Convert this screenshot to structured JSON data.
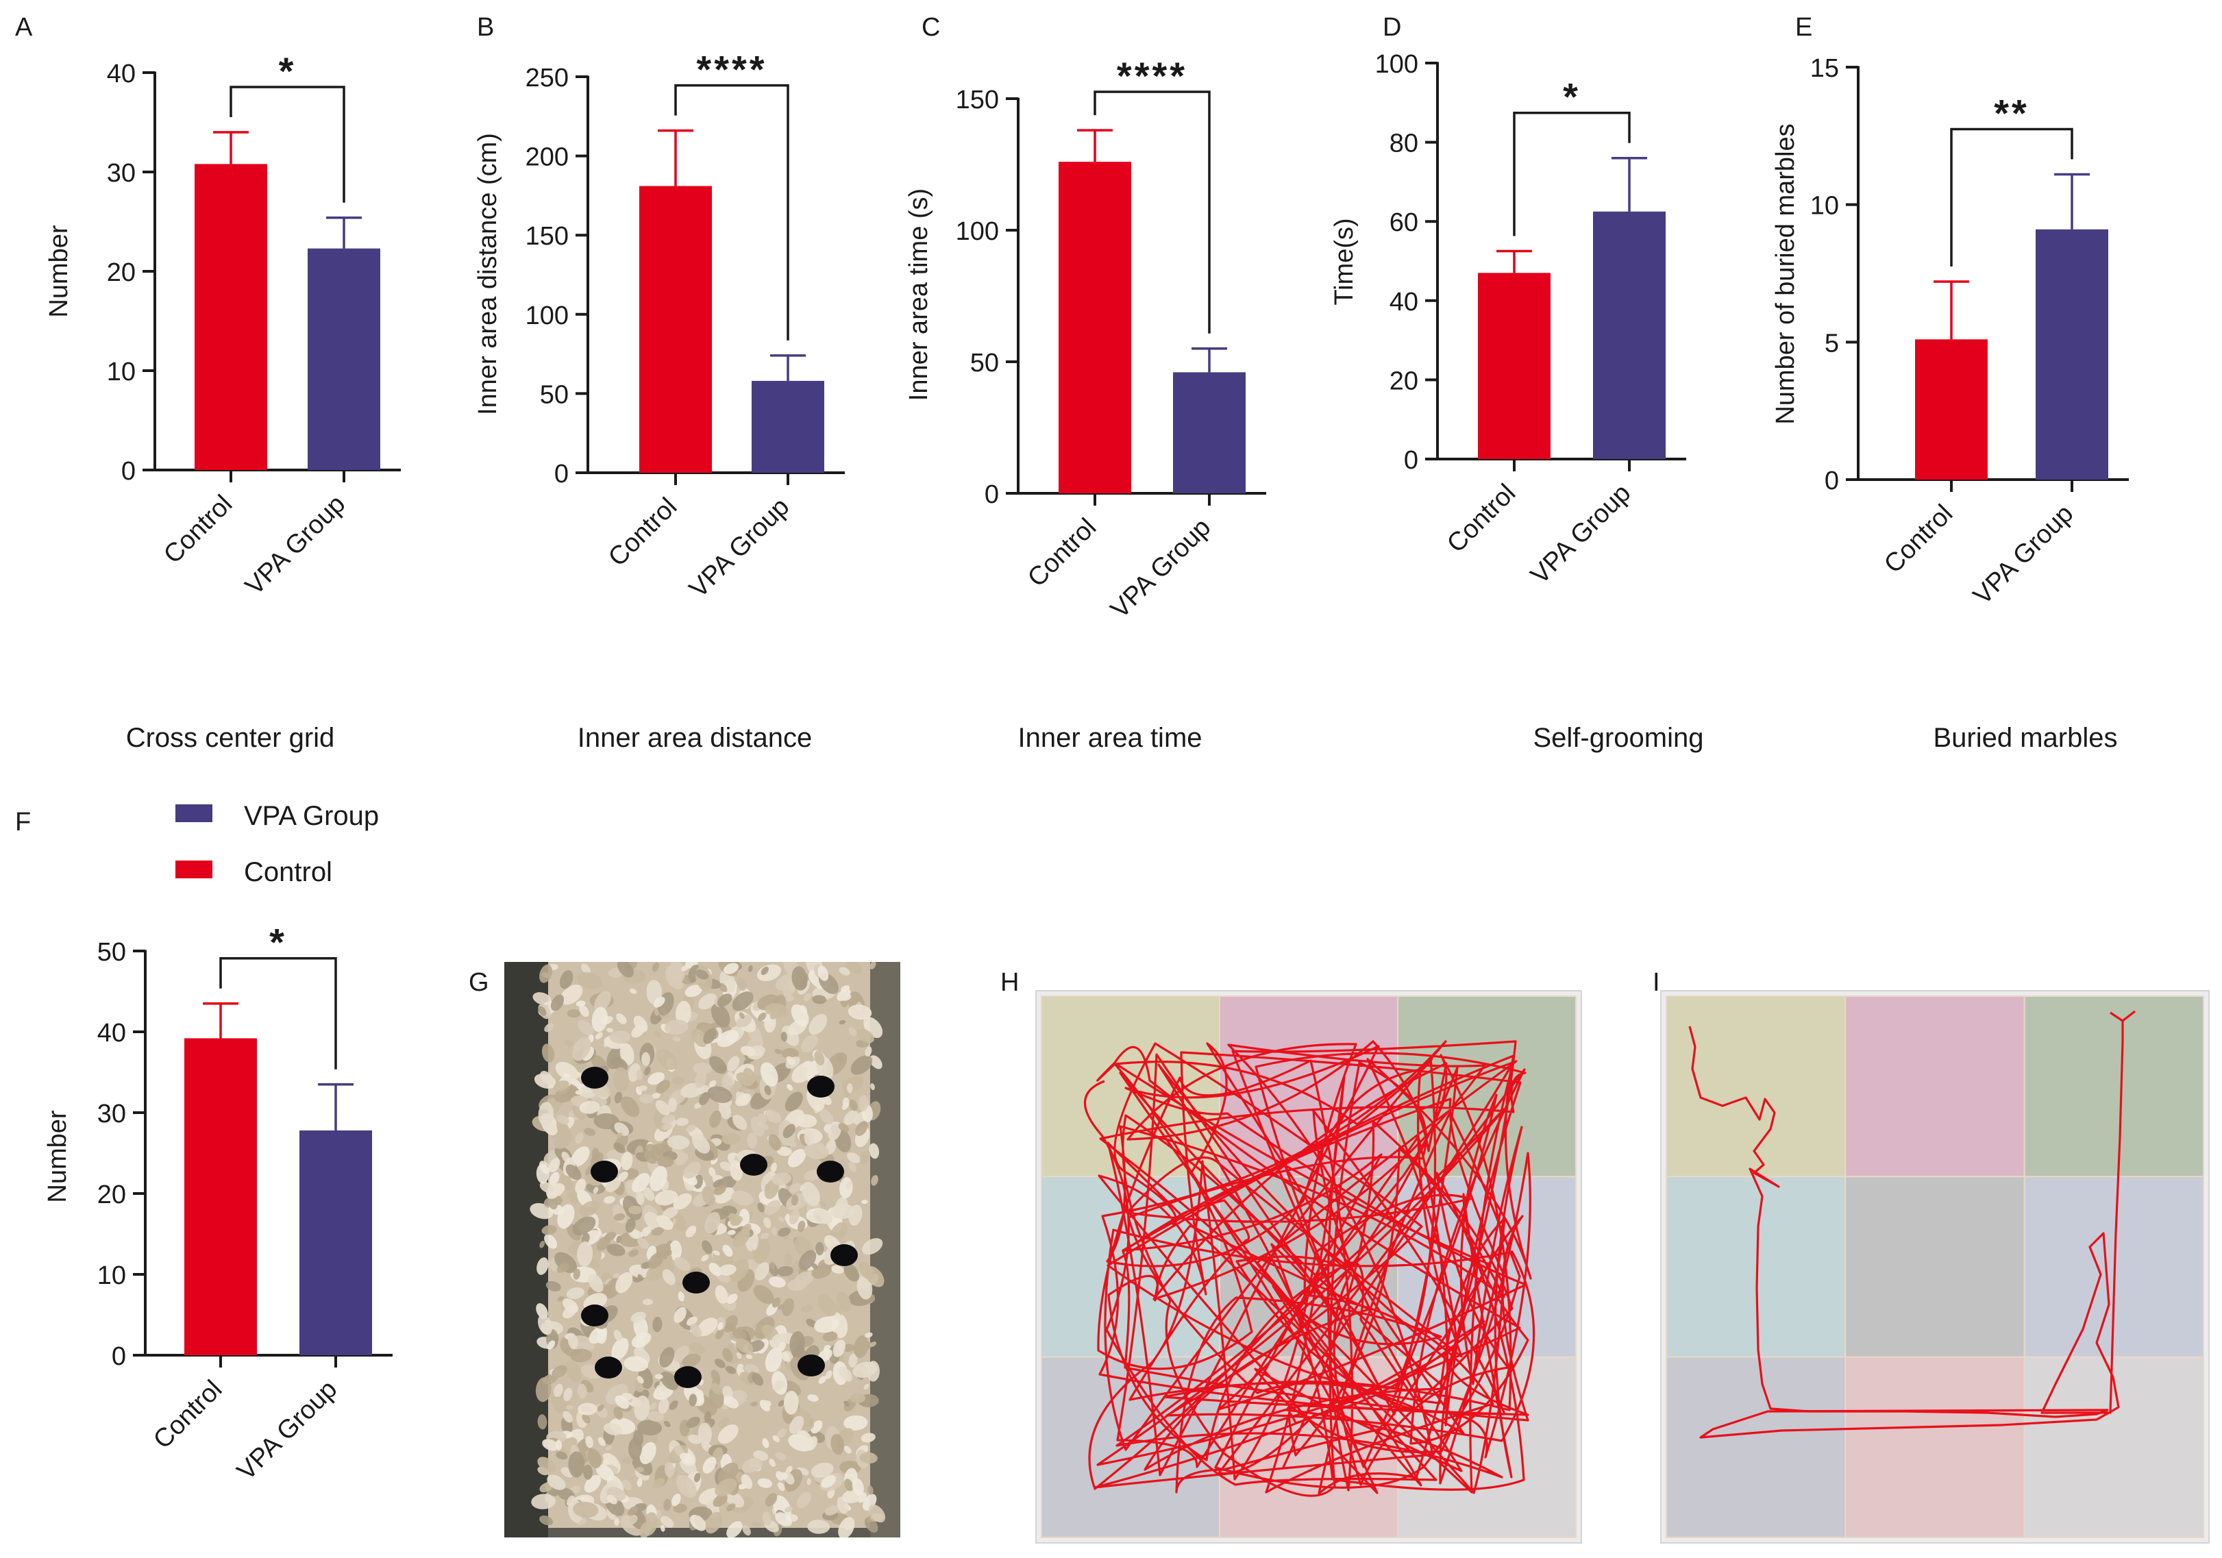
{
  "colors": {
    "control": "#e3001a",
    "vpa": "#463c82",
    "axis": "#1a1a1a",
    "trace": "#e8101a"
  },
  "legend": {
    "items": [
      {
        "label": "VPA Group",
        "color": "#463c82"
      },
      {
        "label": "Control",
        "color": "#e3001a"
      }
    ]
  },
  "chart_data": [
    {
      "id": "A",
      "letter": "A",
      "type": "bar",
      "title": "Cross center grid",
      "ylabel": "Number",
      "ylim": [
        0,
        40
      ],
      "yticks": [
        0,
        10,
        20,
        30,
        40
      ],
      "categories": [
        "Control",
        "VPA Group"
      ],
      "values": [
        30.8,
        22.3
      ],
      "errors": [
        3.2,
        3.1
      ],
      "significance": "*"
    },
    {
      "id": "B",
      "letter": "B",
      "type": "bar",
      "title": "Inner area distance",
      "ylabel": "Inner area distance    (cm)",
      "ylim": [
        0,
        250
      ],
      "yticks": [
        0,
        50,
        100,
        150,
        200,
        250
      ],
      "categories": [
        "Control",
        "VPA Group"
      ],
      "values": [
        181,
        58
      ],
      "errors": [
        35,
        16
      ],
      "significance": "****"
    },
    {
      "id": "C",
      "letter": "C",
      "type": "bar",
      "title": "Inner area time",
      "ylabel": "Inner area time       (s)",
      "ylim": [
        0,
        150
      ],
      "yticks": [
        0,
        50,
        100,
        150
      ],
      "categories": [
        "Control",
        "VPA Group"
      ],
      "values": [
        126,
        46
      ],
      "errors": [
        12,
        9
      ],
      "significance": "****"
    },
    {
      "id": "D",
      "letter": "D",
      "type": "bar",
      "title": "Self-grooming",
      "ylabel": "Time(s)",
      "ylim": [
        0,
        100
      ],
      "yticks": [
        0,
        20,
        40,
        60,
        80,
        100
      ],
      "categories": [
        "Control",
        "VPA Group"
      ],
      "values": [
        47,
        62.5
      ],
      "errors": [
        5.5,
        13.5
      ],
      "significance": "*"
    },
    {
      "id": "E",
      "letter": "E",
      "type": "bar",
      "title": "Buried marbles",
      "ylabel": "Number of buried marbles",
      "ylim": [
        0,
        15
      ],
      "yticks": [
        0,
        5,
        10,
        15
      ],
      "categories": [
        "Control",
        "VPA Group"
      ],
      "values": [
        5.1,
        9.1
      ],
      "errors": [
        2.1,
        2.0
      ],
      "significance": "**"
    },
    {
      "id": "F",
      "letter": "F",
      "type": "bar",
      "title": "",
      "ylabel": "Number",
      "ylim": [
        0,
        50
      ],
      "yticks": [
        0,
        10,
        20,
        30,
        40,
        50
      ],
      "categories": [
        "Control",
        "VPA Group"
      ],
      "values": [
        39.2,
        27.8
      ],
      "errors": [
        4.3,
        5.7
      ],
      "significance": "*"
    }
  ],
  "photo_panel": {
    "letter": "G"
  },
  "track_panels": [
    {
      "letter": "H"
    },
    {
      "letter": "I"
    }
  ]
}
